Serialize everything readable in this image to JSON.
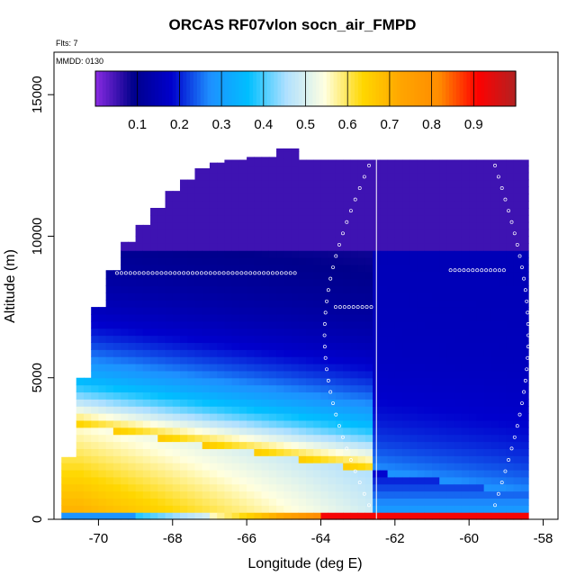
{
  "title": "ORCAS RF07vlon socn_air_FMPD",
  "flights_note": "Flts: 7",
  "date_note": "MMDD: 0130",
  "chart_data": {
    "type": "heatmap",
    "title": "ORCAS RF07vlon socn_air_FMPD",
    "xlabel": "Longitude (deg E)",
    "ylabel": "Altitude (m)",
    "xlim": [
      -71.2,
      -57.6
    ],
    "ylim": [
      0,
      16500
    ],
    "x_ticks": [
      -70,
      -68,
      -66,
      -64,
      -62,
      -60,
      -58
    ],
    "y_ticks": [
      0,
      5000,
      10000,
      15000
    ],
    "colorbar": {
      "range": [
        0.0,
        1.0
      ],
      "ticks": [
        0.1,
        0.2,
        0.3,
        0.4,
        0.5,
        0.6,
        0.7,
        0.8,
        0.9
      ],
      "colors": [
        "#8a2be2",
        "#00008b",
        "#0000cd",
        "#1e90ff",
        "#00bfff",
        "#b0e0ff",
        "#ffffe0",
        "#ffd700",
        "#ffa500",
        "#ff8c00",
        "#ff0000",
        "#b22222"
      ]
    },
    "ceiling_profile": {
      "lon": [
        -71.0,
        -70.6,
        -70.2,
        -69.8,
        -69.4,
        -69.0,
        -68.6,
        -68.2,
        -67.8,
        -67.4,
        -67.0,
        -66.6,
        -66.0,
        -65.5,
        -65.2,
        -64.6,
        -62.5,
        -61.5,
        -58.4
      ],
      "alt": [
        2200,
        5000,
        7500,
        8800,
        9800,
        10400,
        11000,
        11600,
        12000,
        12400,
        12600,
        12700,
        12800,
        12800,
        13100,
        12700,
        12700,
        12700,
        12500
      ]
    },
    "field_description": {
      "boundary_layer_high_lon_range": [
        -71.0,
        -66.0
      ],
      "surface_band_values": "blue west of -69, yellow to orange near -65 to -64, red east of -64"
    },
    "flight_track_annotations": {
      "vertical_line_lon": -62.5,
      "level_legs": [
        {
          "lon": [
            -69.5,
            -64.6
          ],
          "alt": 8700
        },
        {
          "lon": [
            -63.6,
            -62.6
          ],
          "alt": 7500
        },
        {
          "lon": [
            -60.5,
            -59.0
          ],
          "alt": 8800
        }
      ]
    }
  }
}
